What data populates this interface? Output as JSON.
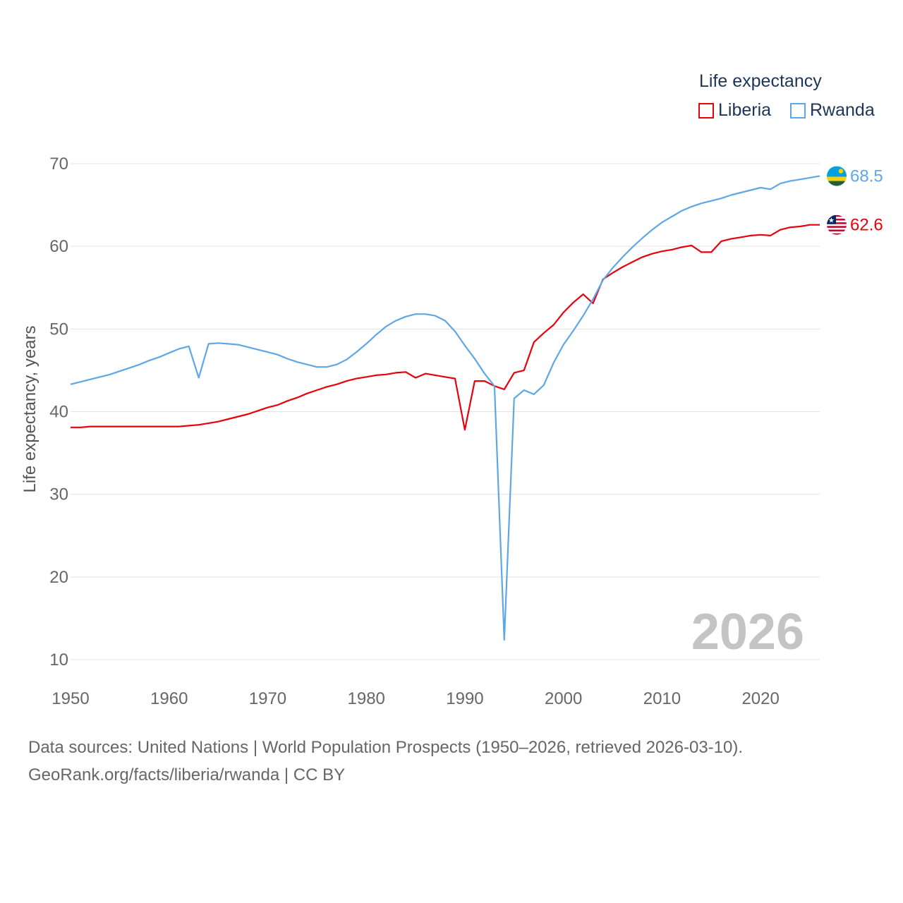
{
  "chart_data": {
    "type": "line",
    "ylabel": "Life expectancy, years",
    "xlim": [
      1950,
      2026
    ],
    "ylim": [
      10,
      70
    ],
    "x_ticks": [
      1950,
      1960,
      1970,
      1980,
      1990,
      2000,
      2010,
      2020
    ],
    "y_ticks": [
      10,
      20,
      30,
      40,
      50,
      60,
      70
    ],
    "grid": true,
    "legend": {
      "title": "Life expectancy",
      "position": "top-right"
    },
    "year_watermark": "2026",
    "series": [
      {
        "name": "Liberia",
        "color": "#e8000b",
        "end_label": "62.6",
        "flag": "liberia-flag-icon",
        "x": [
          1950,
          1951,
          1952,
          1953,
          1954,
          1955,
          1956,
          1957,
          1958,
          1959,
          1960,
          1961,
          1962,
          1963,
          1964,
          1965,
          1966,
          1967,
          1968,
          1969,
          1970,
          1971,
          1972,
          1973,
          1974,
          1975,
          1976,
          1977,
          1978,
          1979,
          1980,
          1981,
          1982,
          1983,
          1984,
          1985,
          1986,
          1987,
          1988,
          1989,
          1990,
          1991,
          1992,
          1993,
          1994,
          1995,
          1996,
          1997,
          1998,
          1999,
          2000,
          2001,
          2002,
          2003,
          2004,
          2005,
          2006,
          2007,
          2008,
          2009,
          2010,
          2011,
          2012,
          2013,
          2014,
          2015,
          2016,
          2017,
          2018,
          2019,
          2020,
          2021,
          2022,
          2023,
          2024,
          2025,
          2026
        ],
        "y": [
          38.1,
          38.1,
          38.2,
          38.2,
          38.2,
          38.2,
          38.2,
          38.2,
          38.2,
          38.2,
          38.2,
          38.2,
          38.3,
          38.4,
          38.6,
          38.8,
          39.1,
          39.4,
          39.7,
          40.1,
          40.5,
          40.8,
          41.3,
          41.7,
          42.2,
          42.6,
          43.0,
          43.3,
          43.7,
          44.0,
          44.2,
          44.4,
          44.5,
          44.7,
          44.8,
          44.1,
          44.6,
          44.4,
          44.2,
          44.0,
          37.8,
          43.7,
          43.7,
          43.1,
          42.7,
          44.7,
          45.0,
          48.4,
          49.5,
          50.5,
          52.0,
          53.2,
          54.2,
          53.1,
          56.0,
          56.8,
          57.5,
          58.1,
          58.7,
          59.1,
          59.4,
          59.6,
          59.9,
          60.1,
          59.3,
          59.3,
          60.6,
          60.9,
          61.1,
          61.3,
          61.4,
          61.3,
          62.0,
          62.3,
          62.4,
          62.6,
          62.6
        ]
      },
      {
        "name": "Rwanda",
        "color": "#5ea7e6",
        "end_label": "68.5",
        "flag": "rwanda-flag-icon",
        "x": [
          1950,
          1951,
          1952,
          1953,
          1954,
          1955,
          1956,
          1957,
          1958,
          1959,
          1960,
          1961,
          1962,
          1963,
          1964,
          1965,
          1966,
          1967,
          1968,
          1969,
          1970,
          1971,
          1972,
          1973,
          1974,
          1975,
          1976,
          1977,
          1978,
          1979,
          1980,
          1981,
          1982,
          1983,
          1984,
          1985,
          1986,
          1987,
          1988,
          1989,
          1990,
          1991,
          1992,
          1993,
          1994,
          1995,
          1996,
          1997,
          1998,
          1999,
          2000,
          2001,
          2002,
          2003,
          2004,
          2005,
          2006,
          2007,
          2008,
          2009,
          2010,
          2011,
          2012,
          2013,
          2014,
          2015,
          2016,
          2017,
          2018,
          2019,
          2020,
          2021,
          2022,
          2023,
          2024,
          2025,
          2026
        ],
        "y": [
          43.3,
          43.6,
          43.9,
          44.2,
          44.5,
          44.9,
          45.3,
          45.7,
          46.2,
          46.6,
          47.1,
          47.6,
          47.9,
          44.1,
          48.2,
          48.3,
          48.2,
          48.1,
          47.8,
          47.5,
          47.2,
          46.9,
          46.4,
          46.0,
          45.7,
          45.4,
          45.4,
          45.7,
          46.3,
          47.2,
          48.2,
          49.3,
          50.3,
          51.0,
          51.5,
          51.8,
          51.8,
          51.6,
          51.0,
          49.7,
          48.0,
          46.4,
          44.6,
          43.1,
          12.4,
          41.6,
          42.6,
          42.1,
          43.2,
          45.9,
          48.1,
          49.8,
          51.6,
          53.6,
          55.9,
          57.4,
          58.7,
          59.9,
          61.0,
          62.0,
          62.9,
          63.6,
          64.3,
          64.8,
          65.2,
          65.5,
          65.8,
          66.2,
          66.5,
          66.8,
          67.1,
          66.9,
          67.6,
          67.9,
          68.1,
          68.3,
          68.5
        ]
      }
    ]
  },
  "footer": {
    "source_line": "Data sources: United Nations | World Population Prospects (1950–2026, retrieved 2026-03-10).",
    "attribution_line": "GeoRank.org/facts/liberia/rwanda | CC BY"
  }
}
